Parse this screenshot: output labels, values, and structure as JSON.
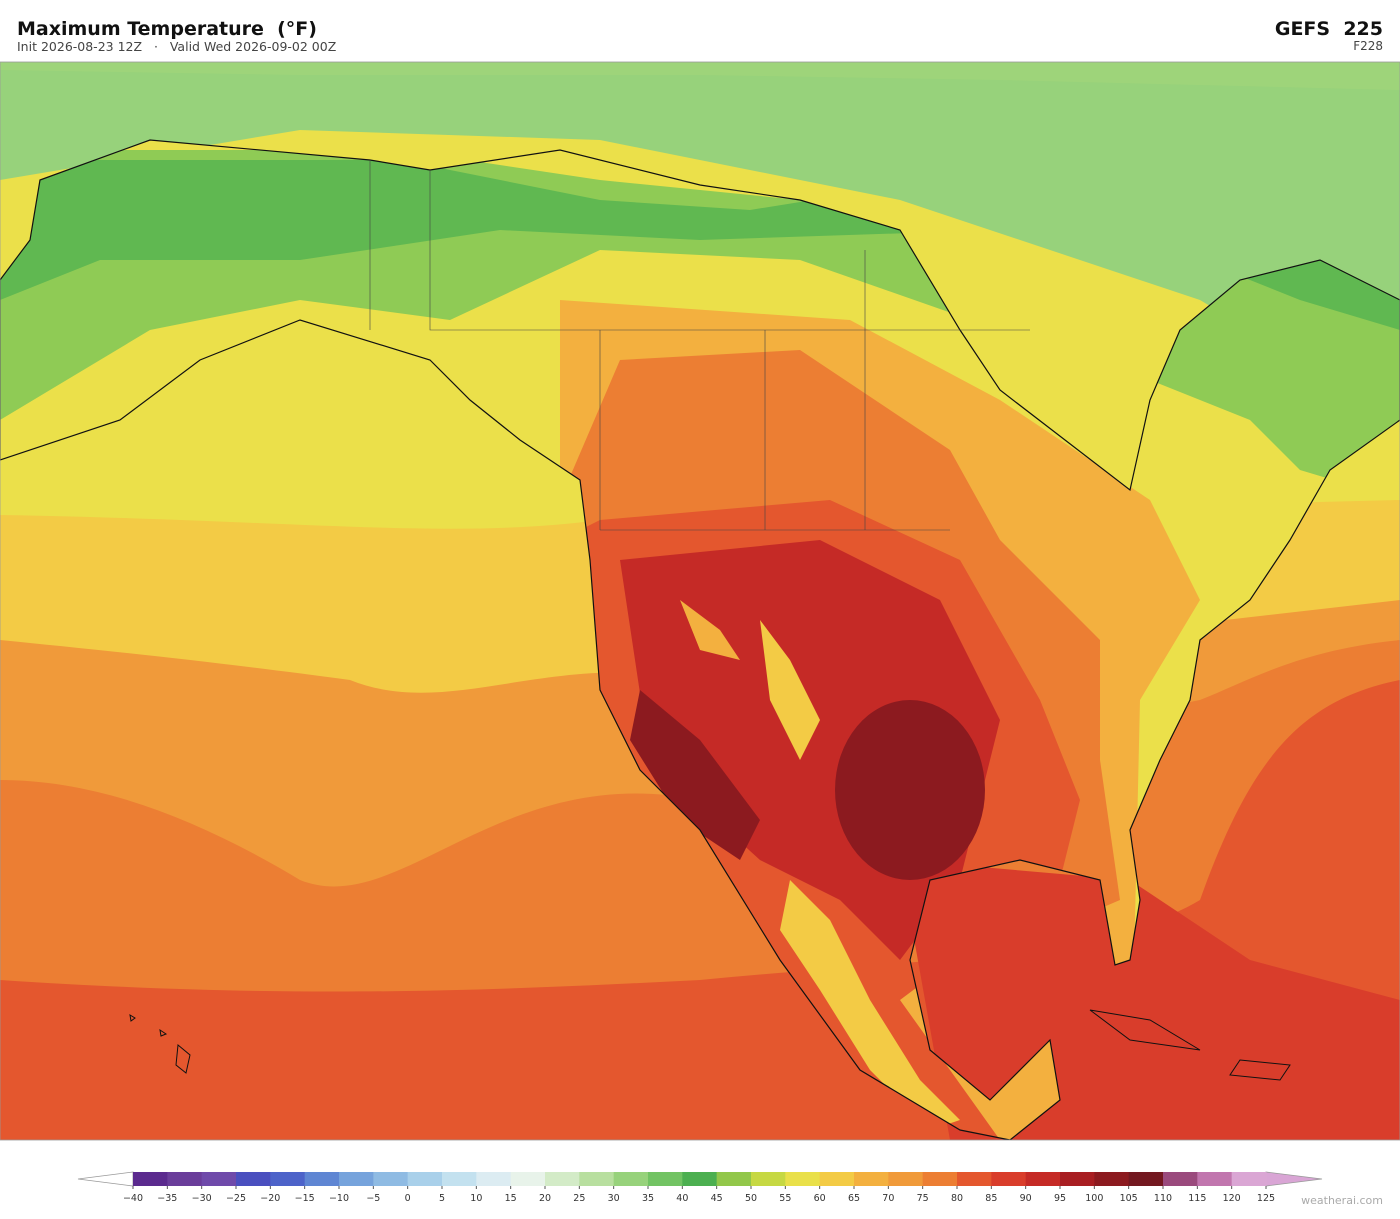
{
  "header": {
    "title": "Maximum Temperature  (°F)",
    "subtitle": "Init 2026-08-23 12Z   ·   Valid Wed 2026-09-02 00Z",
    "model": "GEFS  225",
    "forecast_hour": "F228"
  },
  "colorbar": {
    "ticks": [
      {
        "value": -40,
        "label": "−40"
      },
      {
        "value": -35,
        "label": "−35"
      },
      {
        "value": -30,
        "label": "−30"
      },
      {
        "value": -25,
        "label": "−25"
      },
      {
        "value": -20,
        "label": "−20"
      },
      {
        "value": -15,
        "label": "−15"
      },
      {
        "value": -10,
        "label": "−10"
      },
      {
        "value": -5,
        "label": "−5"
      },
      0,
      5,
      10,
      15,
      20,
      25,
      30,
      35,
      40,
      45,
      50,
      55,
      60,
      65,
      70,
      75,
      80,
      85,
      90,
      95,
      100,
      105,
      110,
      115,
      120,
      125
    ],
    "colors": [
      "#5b2a8e",
      "#6a3d9a",
      "#6f4aaa",
      "#4a4fbf",
      "#4d63c9",
      "#5f86d3",
      "#76a3dc",
      "#8fbbe3",
      "#a9d0ea",
      "#c3e1ef",
      "#dcecf2",
      "#e8f3ea",
      "#d3ebc7",
      "#b8df9f",
      "#97d27b",
      "#72c363",
      "#4caf50",
      "#92c74a",
      "#c6d843",
      "#e9e04a",
      "#f3cb45",
      "#f3b03f",
      "#f09a3a",
      "#ec7e33",
      "#e4572e",
      "#d93d2b",
      "#c52a26",
      "#a81e22",
      "#8c1a1f",
      "#731820",
      "#9a4a7d",
      "#c176ae",
      "#daa6d4"
    ],
    "under_color": "#ffffff",
    "over_color": "#d9a5d5"
  },
  "footer": {
    "watermark": "weatherai.com"
  }
}
